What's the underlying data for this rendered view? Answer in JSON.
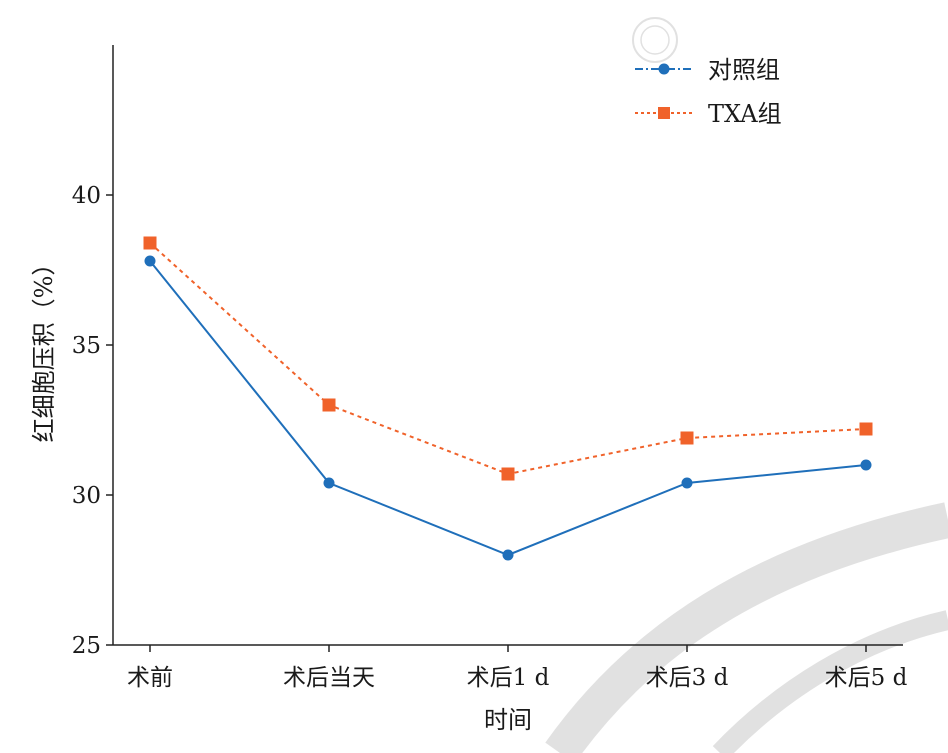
{
  "chart_data": {
    "type": "line",
    "categories": [
      "术前",
      "术后当天",
      "术后1 d",
      "术后3 d",
      "术后5 d"
    ],
    "series": [
      {
        "name": "对照组",
        "values": [
          37.8,
          30.4,
          28.0,
          30.4,
          31.0
        ],
        "color": "#1f6fba",
        "marker": "circle",
        "line_style": "solid"
      },
      {
        "name": "TXA组",
        "values": [
          38.4,
          33.0,
          30.7,
          31.9,
          32.2
        ],
        "color": "#f0622a",
        "marker": "square",
        "line_style": "dotted"
      }
    ],
    "ylabel": "红细胞压积（%）",
    "xlabel": "时间",
    "yticks": [
      25,
      30,
      35,
      40
    ],
    "ylim": [
      25,
      45
    ],
    "legend_position": "top-right",
    "grid": false
  }
}
